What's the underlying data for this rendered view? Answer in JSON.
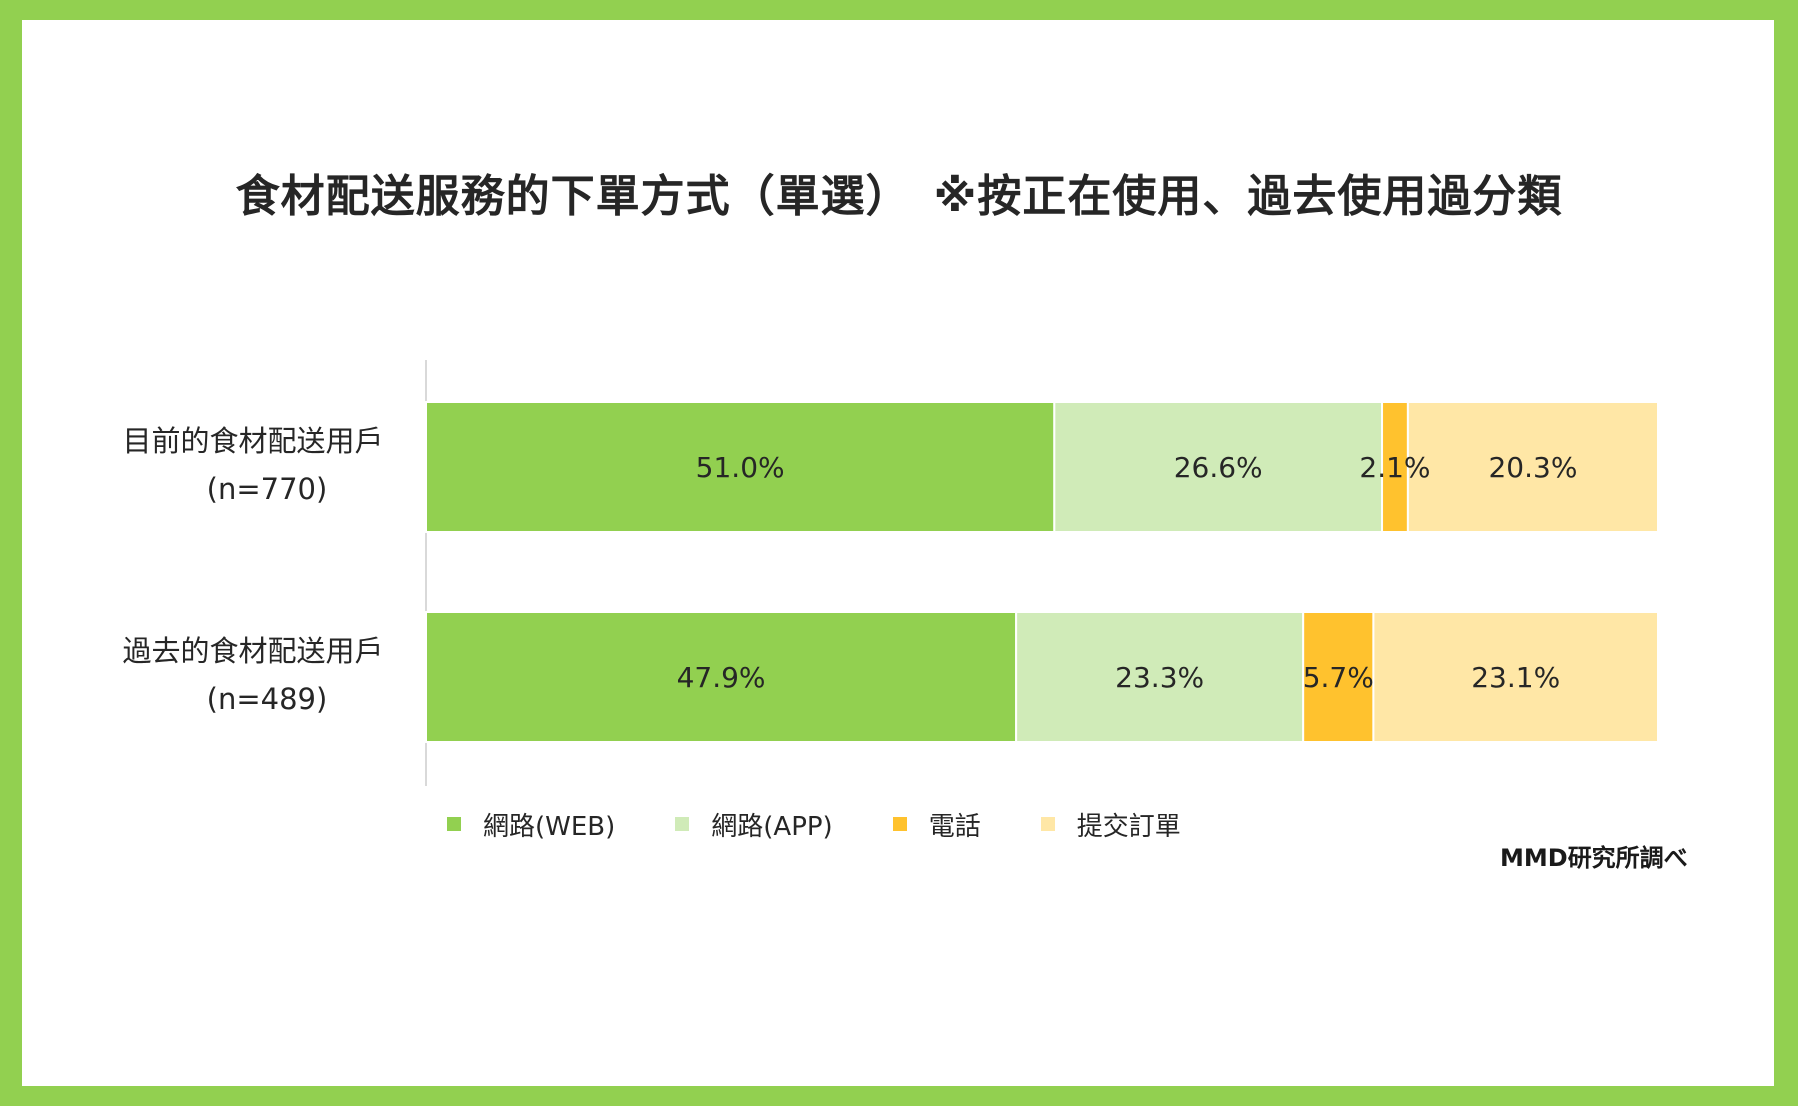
{
  "title": "食材配送服務的下單方式（單選）　※按正在使用、過去使用過分類",
  "source": "MMD研究所調べ",
  "chart_data": {
    "type": "bar",
    "orientation": "horizontal",
    "stacked": "percent",
    "categories": [
      [
        "目前的食材配送用戶",
        "(n=770)"
      ],
      [
        "過去的食材配送用戶",
        "(n=489)"
      ]
    ],
    "series": [
      {
        "name": "網路(WEB)",
        "color": "#92d050",
        "values": [
          51.0,
          47.9
        ],
        "labels": [
          "51.0%",
          "47.9%"
        ]
      },
      {
        "name": "網路(APP)",
        "color": "#d0ebb8",
        "values": [
          26.6,
          23.3
        ],
        "labels": [
          "26.6%",
          "23.3%"
        ]
      },
      {
        "name": "電話",
        "color": "#ffc22e",
        "values": [
          2.1,
          5.7
        ],
        "labels": [
          "2.1%",
          "5.7%"
        ]
      },
      {
        "name": "提交訂單",
        "color": "#ffe7a6",
        "values": [
          20.3,
          23.1
        ],
        "labels": [
          "20.3%",
          "23.1%"
        ]
      }
    ],
    "legend": "bottom",
    "grid": false
  }
}
